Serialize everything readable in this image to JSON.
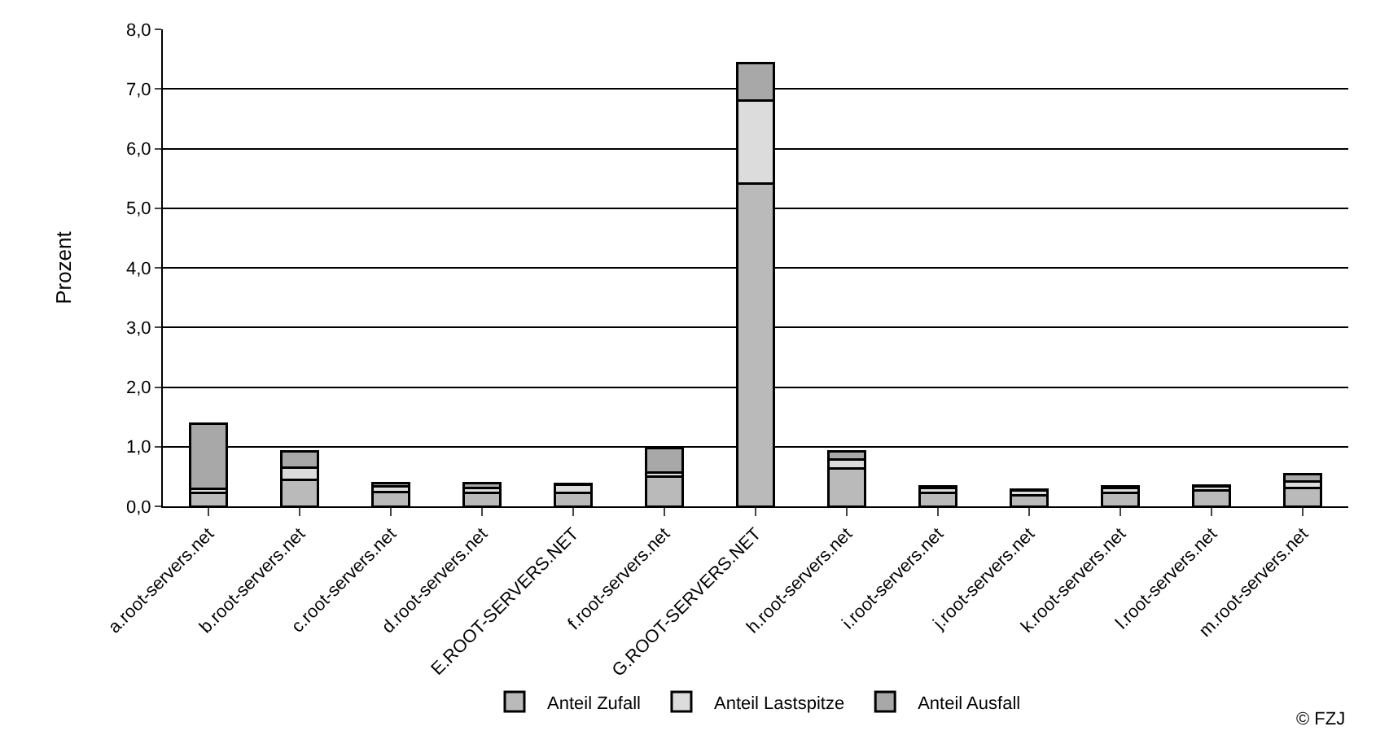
{
  "chart_data": {
    "type": "bar",
    "stacked": true,
    "ylabel": "Prozent",
    "categories": [
      "a.root-servers.net",
      "b.root-servers.net",
      "c.root-servers.net",
      "d.root-servers.net",
      "E.ROOT-SERVERS.NET",
      "f.root-servers.net",
      "G.ROOT-SERVERS.NET",
      "h.root-servers.net",
      "i.root-servers.net",
      "j.root-servers.net",
      "k.root-servers.net",
      "l.root-servers.net",
      "m.root-servers.net"
    ],
    "series": [
      {
        "name": "Anteil Zufall",
        "color": "#bababa",
        "values": [
          0.22,
          0.44,
          0.24,
          0.22,
          0.22,
          0.5,
          5.41,
          0.64,
          0.23,
          0.18,
          0.23,
          0.26,
          0.31
        ]
      },
      {
        "name": "Anteil Lastspitze",
        "color": "#dcdcdc",
        "values": [
          0.07,
          0.21,
          0.1,
          0.09,
          0.14,
          0.06,
          1.39,
          0.14,
          0.08,
          0.08,
          0.08,
          0.07,
          0.1
        ]
      },
      {
        "name": "Anteil Ausfall",
        "color": "#a8a8a8",
        "values": [
          1.1,
          0.27,
          0.05,
          0.08,
          0.02,
          0.42,
          0.64,
          0.14,
          0.03,
          0.02,
          0.03,
          0.02,
          0.13
        ]
      }
    ],
    "ylim": [
      0,
      8
    ],
    "yticks": [
      {
        "value": 0,
        "label": "0,0"
      },
      {
        "value": 1,
        "label": "1,0"
      },
      {
        "value": 2,
        "label": "2,0"
      },
      {
        "value": 3,
        "label": "3,0"
      },
      {
        "value": 4,
        "label": "4,0"
      },
      {
        "value": 5,
        "label": "5,0"
      },
      {
        "value": 6,
        "label": "6,0"
      },
      {
        "value": 7,
        "label": "7,0"
      },
      {
        "value": 8,
        "label": "8,0"
      }
    ],
    "grid": "y",
    "legend": "bottom",
    "annotations": [
      "© FZJ"
    ]
  }
}
